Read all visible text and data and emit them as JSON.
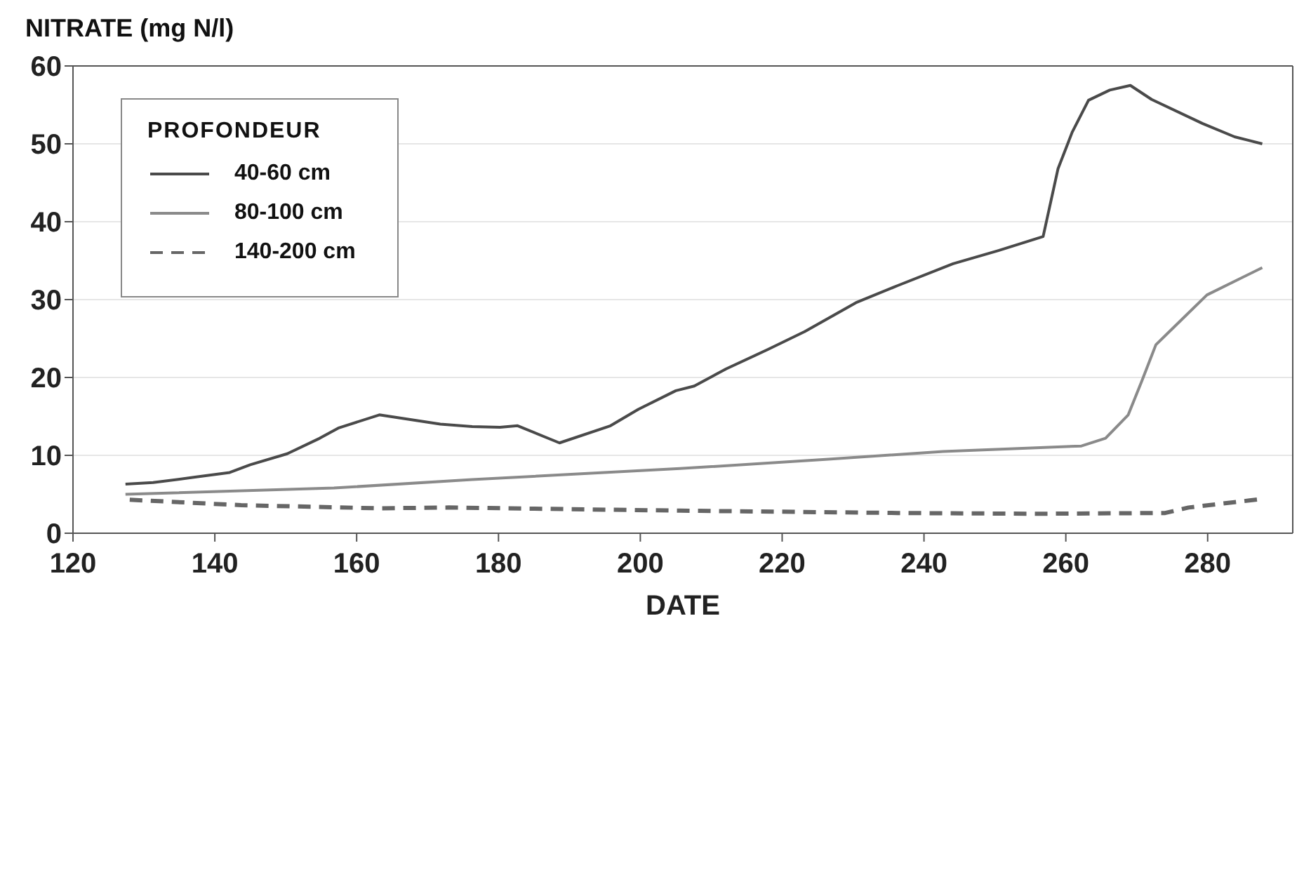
{
  "chart_data": {
    "type": "line",
    "ylabel": "NITRATE (mg N/l)",
    "xlabel": "DATE",
    "legend_title": "PROFONDEUR",
    "legend": "top left",
    "grid": "y",
    "marker": "none",
    "xlim": [
      120,
      292
    ],
    "xticks": [
      120,
      140,
      160,
      180,
      200,
      220,
      240,
      260,
      280
    ],
    "ylim": [
      0,
      60
    ],
    "yticks": [
      0,
      10,
      20,
      30,
      40,
      50,
      60
    ],
    "series": [
      {
        "name": "40-60 cm",
        "color": "#4a4a4a",
        "line_style": "solid",
        "x": [
          127.4,
          131.3,
          137.2,
          142.1,
          145,
          150.2,
          154.8,
          157.4,
          163.2,
          171.8,
          176.3,
          180.2,
          182.7,
          188.6,
          195.8,
          199.7,
          205,
          207.6,
          212.1,
          218,
          223.2,
          230.4,
          236.3,
          244.1,
          250.5,
          256.8,
          258.9,
          260.9,
          263.2,
          266.2,
          269.1,
          272.1,
          279.3,
          283.8,
          287.7
        ],
        "values": [
          6.3,
          6.5,
          7.2,
          7.8,
          8.8,
          10.2,
          12.2,
          13.5,
          15.2,
          14.0,
          13.7,
          13.6,
          13.8,
          11.6,
          13.8,
          15.9,
          18.3,
          18.9,
          21.1,
          23.6,
          25.9,
          29.6,
          31.8,
          34.6,
          36.3,
          38.1,
          46.8,
          51.5,
          55.6,
          56.9,
          57.5,
          55.7,
          52.6,
          50.9,
          50.0
        ]
      },
      {
        "name": "80-100 cm",
        "color": "#8a8a8a",
        "line_style": "solid",
        "x": [
          127.4,
          156.8,
          176.3,
          205.6,
          226.5,
          242.7,
          262.2,
          265.6,
          268.8,
          270.7,
          272.7,
          275.4,
          279.9,
          287.7
        ],
        "values": [
          5.0,
          5.8,
          6.9,
          8.3,
          9.5,
          10.5,
          11.2,
          12.2,
          15.2,
          19.5,
          24.2,
          26.6,
          30.6,
          34.1
        ]
      },
      {
        "name": "140-200 cm",
        "color": "#666666",
        "line_style": "dashed",
        "x": [
          128,
          143.7,
          163.2,
          173,
          205.6,
          236.3,
          255.8,
          274,
          277.3,
          287.7
        ],
        "values": [
          4.3,
          3.6,
          3.2,
          3.3,
          2.9,
          2.6,
          2.5,
          2.6,
          3.3,
          4.4
        ]
      }
    ]
  }
}
